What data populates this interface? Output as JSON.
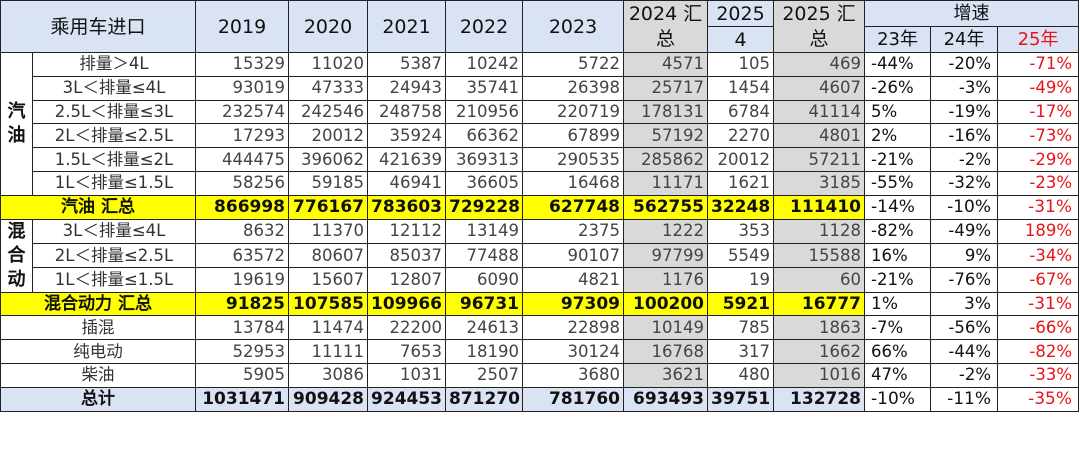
{
  "header": {
    "title": "乘用车进口",
    "years": [
      "2019",
      "2020",
      "2021",
      "2022",
      "2023"
    ],
    "total2024": "2024 汇总",
    "month2025_top": "2025",
    "month2025_bottom": "4",
    "total2025": "2025 汇总",
    "growth": "增速",
    "growth_cols": [
      "23年",
      "24年",
      "25年"
    ]
  },
  "colors": {
    "summary_row": "#ffff00",
    "header_bg": "#dae3f3",
    "gray_col": "#d9d9d9",
    "red_text": "#e8141b"
  },
  "groups": [
    {
      "label": "汽油",
      "rows": [
        {
          "label": "排量＞4L",
          "values": [
            "15329",
            "11020",
            "5387",
            "10242",
            "5722",
            "4571",
            "105",
            "469"
          ],
          "growth": [
            "-44%",
            "-20%",
            "-71%"
          ]
        },
        {
          "label": "3L＜排量≤4L",
          "values": [
            "93019",
            "47333",
            "24943",
            "35741",
            "26398",
            "25717",
            "1454",
            "4607"
          ],
          "growth": [
            "-26%",
            "-3%",
            "-49%"
          ]
        },
        {
          "label": "2.5L＜排量≤3L",
          "values": [
            "232574",
            "242546",
            "248758",
            "210956",
            "220719",
            "178131",
            "6784",
            "41114"
          ],
          "growth": [
            "5%",
            "-19%",
            "-17%"
          ]
        },
        {
          "label": "2L＜排量≤2.5L",
          "values": [
            "17293",
            "20012",
            "35924",
            "66362",
            "67899",
            "57192",
            "2270",
            "4801"
          ],
          "growth": [
            "2%",
            "-16%",
            "-73%"
          ]
        },
        {
          "label": "1.5L＜排量≤2L",
          "values": [
            "444475",
            "396062",
            "421639",
            "369313",
            "290535",
            "285862",
            "20012",
            "57211"
          ],
          "growth": [
            "-21%",
            "-2%",
            "-29%"
          ]
        },
        {
          "label": "1L＜排量≤1.5L",
          "values": [
            "58256",
            "59185",
            "46941",
            "36605",
            "16468",
            "11171",
            "1621",
            "3185"
          ],
          "growth": [
            "-55%",
            "-32%",
            "-23%"
          ]
        }
      ],
      "summary": {
        "label": "汽油 汇总",
        "values": [
          "866998",
          "776167",
          "783603",
          "729228",
          "627748",
          "562755",
          "32248",
          "111410"
        ],
        "growth": [
          "-14%",
          "-10%",
          "-31%"
        ]
      }
    },
    {
      "label": "混合动",
      "rows": [
        {
          "label": "3L＜排量≤4L",
          "values": [
            "8632",
            "11370",
            "12112",
            "13149",
            "2375",
            "1222",
            "353",
            "1128"
          ],
          "growth": [
            "-82%",
            "-49%",
            "189%"
          ]
        },
        {
          "label": "2L＜排量≤2.5L",
          "values": [
            "63572",
            "80607",
            "85037",
            "77488",
            "90107",
            "97799",
            "5549",
            "15588"
          ],
          "growth": [
            "16%",
            "9%",
            "-34%"
          ]
        },
        {
          "label": "1L＜排量≤1.5L",
          "values": [
            "19619",
            "15607",
            "12807",
            "6090",
            "4821",
            "1176",
            "19",
            "60"
          ],
          "growth": [
            "-21%",
            "-76%",
            "-67%"
          ]
        }
      ],
      "summary": {
        "label": "混合动力 汇总",
        "values": [
          "91825",
          "107585",
          "109966",
          "96731",
          "97309",
          "100200",
          "5921",
          "16777"
        ],
        "growth": [
          "1%",
          "3%",
          "-31%"
        ]
      }
    }
  ],
  "others": [
    {
      "label": "插混",
      "values": [
        "13784",
        "11474",
        "22200",
        "24613",
        "22898",
        "10149",
        "785",
        "1863"
      ],
      "growth": [
        "-7%",
        "-56%",
        "-66%"
      ]
    },
    {
      "label": "纯电动",
      "values": [
        "52953",
        "11111",
        "7653",
        "18190",
        "30124",
        "16768",
        "317",
        "1662"
      ],
      "growth": [
        "66%",
        "-44%",
        "-82%"
      ]
    },
    {
      "label": "柴油",
      "values": [
        "5905",
        "3086",
        "1031",
        "2507",
        "3680",
        "3621",
        "480",
        "1016"
      ],
      "growth": [
        "47%",
        "-2%",
        "-33%"
      ]
    }
  ],
  "total": {
    "label": "总计",
    "values": [
      "1031471",
      "909428",
      "924453",
      "871270",
      "781760",
      "693493",
      "39751",
      "132728"
    ],
    "growth": [
      "-10%",
      "-11%",
      "-35%"
    ]
  }
}
